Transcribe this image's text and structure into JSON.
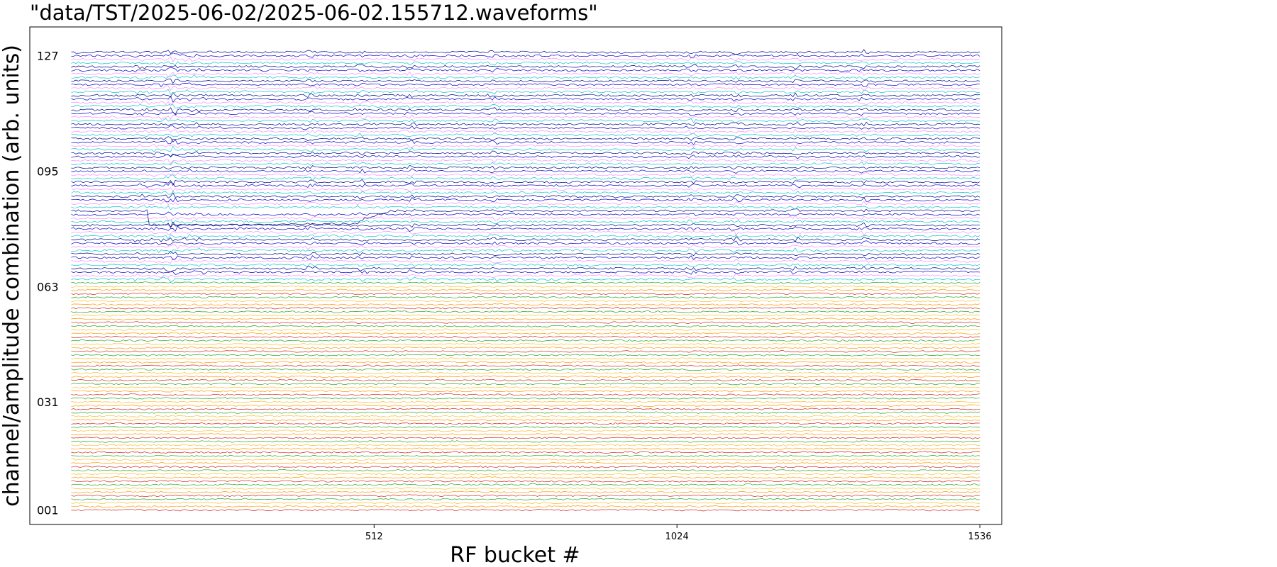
{
  "chart_data": {
    "type": "line",
    "title": "\"data/TST/2025-06-02/2025-06-02.155712.waveforms\"",
    "xlabel": "RF bucket #",
    "ylabel": "channel/amplitude combination (arb. units)",
    "xlim": [
      -70,
      1573
    ],
    "ylim": [
      -3,
      135
    ],
    "x_ticks": [
      {
        "value": 512,
        "label": "512"
      },
      {
        "value": 1024,
        "label": "1024"
      },
      {
        "value": 1536,
        "label": "1536"
      }
    ],
    "y_ticks": [
      {
        "value": 1,
        "label": "001"
      },
      {
        "value": 31,
        "label": "031"
      },
      {
        "value": 63,
        "label": "063"
      },
      {
        "value": 95,
        "label": "095"
      },
      {
        "value": 127,
        "label": "127"
      }
    ],
    "grid": false,
    "legend": "none",
    "n_traces": 128,
    "x_range": [
      0,
      1536
    ],
    "trace_colors_lower": [
      "#d62728",
      "#ff9900",
      "#ffbb33",
      "#22aa22"
    ],
    "trace_colors_upper": [
      "#00cccc",
      "#ff88ff",
      "#0000cc",
      "#000088"
    ],
    "transient_positions": [
      170,
      405,
      490,
      575,
      715,
      1050,
      1125,
      1225,
      1340
    ],
    "offset_event": {
      "trace": 84,
      "start": 130,
      "end": 480,
      "depth": 4
    }
  }
}
